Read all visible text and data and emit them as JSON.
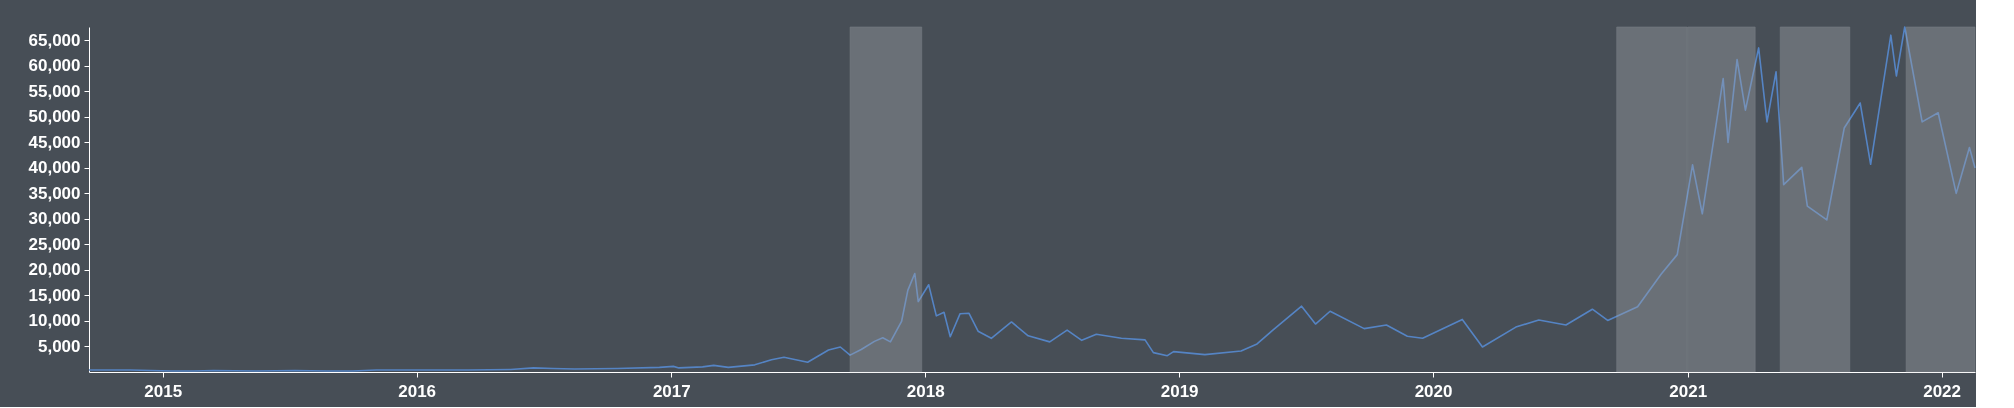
{
  "chart_data": {
    "type": "line",
    "x": [
      "2014-09-17",
      "2014-10-15",
      "2014-11-15",
      "2014-12-15",
      "2015-01-14",
      "2015-02-15",
      "2015-03-15",
      "2015-05-15",
      "2015-07-10",
      "2015-08-25",
      "2015-10-01",
      "2015-11-04",
      "2015-12-15",
      "2016-01-15",
      "2016-03-15",
      "2016-05-15",
      "2016-06-17",
      "2016-07-15",
      "2016-08-15",
      "2016-10-15",
      "2016-12-15",
      "2017-01-04",
      "2017-01-12",
      "2017-02-15",
      "2017-03-03",
      "2017-03-24",
      "2017-05-01",
      "2017-05-25",
      "2017-06-12",
      "2017-07-16",
      "2017-08-15",
      "2017-09-01",
      "2017-09-15",
      "2017-10-01",
      "2017-10-20",
      "2017-11-01",
      "2017-11-12",
      "2017-11-28",
      "2017-12-07",
      "2017-12-17",
      "2017-12-22",
      "2018-01-06",
      "2018-01-17",
      "2018-01-28",
      "2018-02-06",
      "2018-02-20",
      "2018-03-05",
      "2018-03-18",
      "2018-04-06",
      "2018-05-05",
      "2018-05-29",
      "2018-06-29",
      "2018-07-24",
      "2018-08-14",
      "2018-09-04",
      "2018-10-10",
      "2018-11-13",
      "2018-11-25",
      "2018-12-15",
      "2018-12-24",
      "2019-02-07",
      "2019-03-31",
      "2019-04-23",
      "2019-05-14",
      "2019-06-26",
      "2019-07-16",
      "2019-08-06",
      "2019-09-24",
      "2019-10-26",
      "2019-11-25",
      "2019-12-17",
      "2020-02-12",
      "2020-03-12",
      "2020-04-29",
      "2020-06-01",
      "2020-07-10",
      "2020-08-17",
      "2020-09-08",
      "2020-10-21",
      "2020-11-24",
      "2020-12-17",
      "2021-01-08",
      "2021-01-22",
      "2021-02-21",
      "2021-02-28",
      "2021-03-13",
      "2021-03-25",
      "2021-04-13",
      "2021-04-25",
      "2021-05-08",
      "2021-05-19",
      "2021-06-14",
      "2021-06-22",
      "2021-07-20",
      "2021-08-14",
      "2021-09-06",
      "2021-09-21",
      "2021-10-20",
      "2021-10-28",
      "2021-11-09",
      "2021-12-04",
      "2021-12-27",
      "2022-01-22",
      "2022-02-10",
      "2022-02-18"
    ],
    "series": [
      {
        "color": "#5584c4",
        "values": [
          400,
          400,
          400,
          300,
          200,
          200,
          300,
          200,
          300,
          200,
          200,
          400,
          400,
          400,
          400,
          500,
          800,
          700,
          600,
          700,
          900,
          1100,
          800,
          1000,
          1300,
          900,
          1400,
          2400,
          2900,
          1900,
          4300,
          4900,
          3300,
          4400,
          6000,
          6700,
          5900,
          9900,
          16000,
          19300,
          13800,
          17100,
          11000,
          11700,
          6900,
          11400,
          11500,
          8000,
          6600,
          9800,
          7100,
          5900,
          8200,
          6200,
          7400,
          6600,
          6300,
          3800,
          3200,
          4000,
          3400,
          4100,
          5500,
          8000,
          12900,
          9400,
          11900,
          8500,
          9200,
          7000,
          6600,
          10300,
          4900,
          8800,
          10200,
          9200,
          12300,
          10100,
          12800,
          19200,
          23000,
          40600,
          31000,
          57500,
          45000,
          61200,
          51300,
          63500,
          49000,
          58800,
          36700,
          40100,
          32500,
          29800,
          47800,
          52700,
          40700,
          66000,
          58000,
          67600,
          49000,
          50800,
          35000,
          44000,
          40000
        ]
      }
    ],
    "xlim": [
      "2014-09-17",
      "2022-02-18"
    ],
    "xticks": [
      "2015",
      "2016",
      "2017",
      "2018",
      "2019",
      "2020",
      "2021",
      "2022"
    ],
    "ylim": [
      0,
      67600
    ],
    "yticks": [
      {
        "value": 5000,
        "label": "5,000"
      },
      {
        "value": 10000,
        "label": "10,000"
      },
      {
        "value": 15000,
        "label": "15,000"
      },
      {
        "value": 20000,
        "label": "20,000"
      },
      {
        "value": 25000,
        "label": "25,000"
      },
      {
        "value": 30000,
        "label": "30,000"
      },
      {
        "value": 35000,
        "label": "35,000"
      },
      {
        "value": 40000,
        "label": "40,000"
      },
      {
        "value": 45000,
        "label": "45,000"
      },
      {
        "value": 50000,
        "label": "50,000"
      },
      {
        "value": 55000,
        "label": "55,000"
      },
      {
        "value": 60000,
        "label": "60,000"
      },
      {
        "value": 65000,
        "label": "65,000"
      }
    ],
    "bands": [
      {
        "axis": "x",
        "from": "2017-09-15",
        "to": "2017-12-27",
        "color": "#a0a4aa"
      },
      {
        "axis": "x",
        "from": "2020-09-21",
        "to": "2020-12-31",
        "color": "#a0a4aa"
      },
      {
        "axis": "x",
        "from": "2021-01-01",
        "to": "2021-04-08",
        "color": "#a0a4aa"
      },
      {
        "axis": "x",
        "from": "2021-05-14",
        "to": "2021-08-22",
        "color": "#a0a4aa"
      },
      {
        "axis": "x",
        "from": "2021-11-11",
        "to": "2022-02-18",
        "color": "#a0a4aa"
      }
    ],
    "grid": false
  }
}
